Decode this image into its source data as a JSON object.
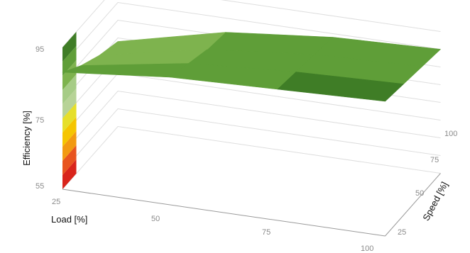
{
  "chart_data": {
    "type": "surface",
    "x_axis": {
      "label": "Load [%]",
      "ticks": [
        "25",
        "50",
        "75",
        "100"
      ]
    },
    "y_axis": {
      "label": "Speed [%]",
      "ticks": [
        "25",
        "50",
        "75",
        "100"
      ]
    },
    "z_axis": {
      "label": "Efficiency [%]",
      "ticks": [
        "55",
        "75",
        "95"
      ],
      "range": [
        55,
        95
      ]
    },
    "load": [
      25,
      50,
      75,
      100
    ],
    "speed": [
      25,
      50,
      75,
      100
    ],
    "efficiency": [
      [
        88,
        84,
        81,
        79
      ],
      [
        91,
        89,
        87,
        86
      ],
      [
        92,
        91,
        90,
        89
      ],
      [
        93,
        92,
        91,
        90
      ]
    ],
    "colorscale": [
      {
        "from": 55,
        "to": 59,
        "color": "#d9241b"
      },
      {
        "from": 59,
        "to": 63,
        "color": "#e8541f"
      },
      {
        "from": 63,
        "to": 67,
        "color": "#f29a11"
      },
      {
        "from": 67,
        "to": 71,
        "color": "#f5c500"
      },
      {
        "from": 71,
        "to": 75,
        "color": "#e6df2a"
      },
      {
        "from": 75,
        "to": 79,
        "color": "#b7d397"
      },
      {
        "from": 79,
        "to": 83,
        "color": "#a6cc86"
      },
      {
        "from": 83,
        "to": 87,
        "color": "#7eb34e"
      },
      {
        "from": 87,
        "to": 91,
        "color": "#5f9e38"
      },
      {
        "from": 91,
        "to": 95,
        "color": "#3f7d26"
      }
    ]
  }
}
